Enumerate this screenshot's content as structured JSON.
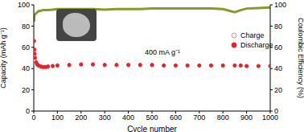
{
  "chart_data": {
    "type": "line",
    "x_label": "Cycle number",
    "y_label": "Capacity (mAh g⁻¹)",
    "y2_label": "Coulombic Efficiency (%)",
    "annotation": "400 mA g⁻¹",
    "x": [
      1,
      2,
      3,
      5,
      10,
      15,
      20,
      30,
      40,
      50,
      60,
      80,
      100,
      150,
      200,
      250,
      300,
      350,
      400,
      450,
      500,
      550,
      600,
      650,
      700,
      750,
      800,
      850,
      875,
      900,
      950,
      1000
    ],
    "xlim": [
      0,
      1000
    ],
    "xticks": [
      0,
      100,
      200,
      300,
      400,
      500,
      600,
      700,
      800,
      900,
      1000
    ],
    "ylim": [
      0,
      100
    ],
    "yticks": [
      0,
      20,
      40,
      60,
      80,
      100
    ],
    "y2lim": [
      0,
      100
    ],
    "y2ticks": [
      0,
      20,
      40,
      60,
      80,
      100
    ],
    "grid": false,
    "legend": "right",
    "series": [
      {
        "name": "Charge",
        "color": "#f08a8a",
        "marker": "open_circle",
        "line_style": "none",
        "values": [
          56,
          53,
          51,
          48,
          45,
          43.5,
          42.5,
          41.5,
          41,
          41,
          41.5,
          42,
          42.5,
          43,
          43.5,
          43.5,
          43,
          43,
          43,
          43,
          43,
          42.5,
          42.5,
          42.5,
          42.5,
          42.5,
          42.5,
          42.5,
          42.5,
          42,
          42,
          42
        ]
      },
      {
        "name": "Discharge",
        "color": "#e8202a",
        "marker": "circle",
        "line_style": "none",
        "values": [
          66,
          58,
          54,
          50,
          46,
          44,
          43,
          42,
          41.5,
          41.5,
          42,
          42.5,
          43,
          43.5,
          44,
          44,
          43.5,
          43.5,
          43.5,
          43.5,
          43.5,
          43,
          43,
          43,
          43,
          43,
          43,
          43,
          43,
          42.5,
          42.5,
          42.5
        ]
      },
      {
        "color": "#8a9a2a",
        "marker": "none",
        "line_style": "solid",
        "axis": "y2",
        "values": [
          84,
          88,
          90,
          91,
          92,
          93,
          94,
          94.5,
          95,
          95,
          95,
          95.5,
          96,
          96,
          96,
          96,
          95.5,
          96,
          96,
          96,
          96.5,
          96.5,
          96.5,
          96.5,
          96.5,
          96.5,
          96,
          93,
          95,
          96.5,
          97,
          97.5
        ]
      }
    ]
  }
}
